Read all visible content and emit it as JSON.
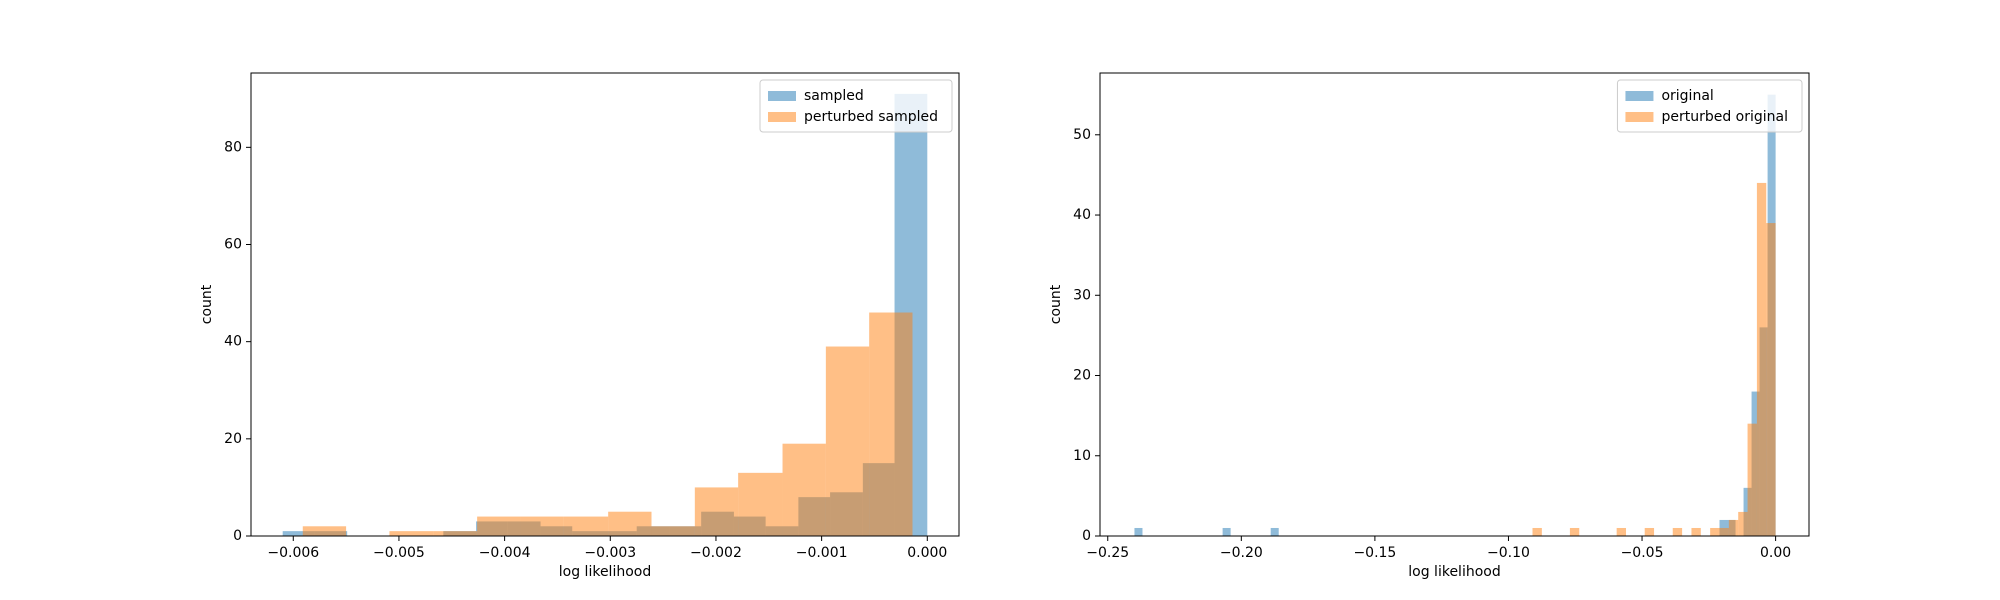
{
  "chart_data": [
    {
      "type": "histogram",
      "xlabel": "log likelihood",
      "ylabel": "count",
      "legend": "upper right",
      "xlim": [
        -0.0064,
        0.0003
      ],
      "ylim": [
        0,
        95.3
      ],
      "xticks": [
        {
          "value": -0.006,
          "label": "−0.006"
        },
        {
          "value": -0.005,
          "label": "−0.005"
        },
        {
          "value": -0.004,
          "label": "−0.004"
        },
        {
          "value": -0.003,
          "label": "−0.003"
        },
        {
          "value": -0.002,
          "label": "−0.002"
        },
        {
          "value": -0.001,
          "label": "−0.001"
        },
        {
          "value": 0,
          "label": "0.000"
        }
      ],
      "yticks": [
        0,
        20,
        40,
        60,
        80
      ],
      "series": [
        {
          "name": "sampled",
          "color": "#1f77b4",
          "bins": [
            -0.0061,
            -0.0058,
            -0.00549,
            -0.00519,
            -0.00488,
            -0.00458,
            -0.00427,
            -0.00397,
            -0.00366,
            -0.00336,
            -0.00305,
            -0.00275,
            -0.00244,
            -0.00214,
            -0.00183,
            -0.00153,
            -0.00122,
            -0.00092,
            -0.00061,
            -0.00031,
            0
          ],
          "values": [
            1,
            1,
            0,
            0,
            0,
            1,
            3,
            3,
            2,
            1,
            1,
            2,
            2,
            5,
            4,
            2,
            8,
            9,
            15,
            91
          ]
        },
        {
          "name": "perturbed sampled",
          "color": "#ff7f0e",
          "bins": [
            -0.00591,
            -0.0055,
            -0.00509,
            -0.00467,
            -0.00426,
            -0.00385,
            -0.00344,
            -0.00302,
            -0.00261,
            -0.0022,
            -0.00179,
            -0.00137,
            -0.00096,
            -0.00055,
            -0.00014
          ],
          "values": [
            2,
            0,
            1,
            1,
            4,
            4,
            4,
            5,
            2,
            10,
            13,
            19,
            39,
            46
          ]
        }
      ]
    },
    {
      "type": "histogram",
      "xlabel": "log likelihood",
      "ylabel": "count",
      "legend": "upper right",
      "xlim": [
        -0.2529,
        0.0125
      ],
      "ylim": [
        0,
        57.7
      ],
      "xticks": [
        {
          "value": -0.25,
          "label": "−0.25"
        },
        {
          "value": -0.2,
          "label": "−0.20"
        },
        {
          "value": -0.15,
          "label": "−0.15"
        },
        {
          "value": -0.1,
          "label": "−0.10"
        },
        {
          "value": -0.05,
          "label": "−0.05"
        },
        {
          "value": 0,
          "label": "0.00"
        }
      ],
      "yticks": [
        0,
        10,
        20,
        30,
        40,
        50
      ],
      "series": [
        {
          "name": "original",
          "color": "#1f77b4",
          "bins": [
            -0.24,
            -0.237,
            -0.234,
            -0.231,
            -0.228,
            -0.225,
            -0.222,
            -0.219,
            -0.216,
            -0.213,
            -0.21,
            -0.207,
            -0.204,
            -0.201,
            -0.198,
            -0.195,
            -0.192,
            -0.189,
            -0.186,
            -0.183,
            -0.18,
            -0.177,
            -0.174,
            -0.171,
            -0.168,
            -0.165,
            -0.162,
            -0.159,
            -0.156,
            -0.153,
            -0.15,
            -0.147,
            -0.144,
            -0.141,
            -0.138,
            -0.135,
            -0.132,
            -0.129,
            -0.126,
            -0.123,
            -0.12,
            -0.117,
            -0.114,
            -0.111,
            -0.108,
            -0.105,
            -0.102,
            -0.099,
            -0.096,
            -0.093,
            -0.09,
            -0.087,
            -0.084,
            -0.081,
            -0.078,
            -0.075,
            -0.072,
            -0.069,
            -0.066,
            -0.063,
            -0.06,
            -0.057,
            -0.054,
            -0.051,
            -0.048,
            -0.045,
            -0.042,
            -0.039,
            -0.036,
            -0.033,
            -0.03,
            -0.027,
            -0.024,
            -0.021,
            -0.018,
            -0.015,
            -0.012,
            -0.009,
            -0.006,
            -0.003,
            0
          ],
          "values": [
            1,
            0,
            0,
            0,
            0,
            0,
            0,
            0,
            0,
            0,
            0,
            1,
            0,
            0,
            0,
            0,
            0,
            1,
            0,
            0,
            0,
            0,
            0,
            0,
            0,
            0,
            0,
            0,
            0,
            0,
            0,
            0,
            0,
            0,
            0,
            0,
            0,
            0,
            0,
            0,
            0,
            0,
            0,
            0,
            0,
            0,
            0,
            0,
            0,
            0,
            0,
            0,
            0,
            0,
            0,
            0,
            0,
            0,
            0,
            0,
            0,
            0,
            0,
            0,
            0,
            0,
            0,
            0,
            0,
            0,
            0,
            0,
            0,
            2,
            2,
            0,
            6,
            18,
            26,
            55
          ]
        },
        {
          "name": "perturbed original",
          "color": "#ff7f0e",
          "bins": [
            -0.091,
            -0.0875,
            -0.084,
            -0.0805,
            -0.077,
            -0.0735,
            -0.07,
            -0.0665,
            -0.063,
            -0.0595,
            -0.056,
            -0.0525,
            -0.049,
            -0.0455,
            -0.042,
            -0.0385,
            -0.035,
            -0.0315,
            -0.028,
            -0.0245,
            -0.021,
            -0.0175,
            -0.014,
            -0.0105,
            -0.007,
            -0.0035,
            0
          ],
          "values": [
            1,
            0,
            0,
            0,
            1,
            0,
            0,
            0,
            0,
            1,
            0,
            0,
            1,
            0,
            0,
            1,
            0,
            1,
            0,
            1,
            1,
            2,
            3,
            14,
            44,
            39
          ]
        }
      ]
    }
  ]
}
